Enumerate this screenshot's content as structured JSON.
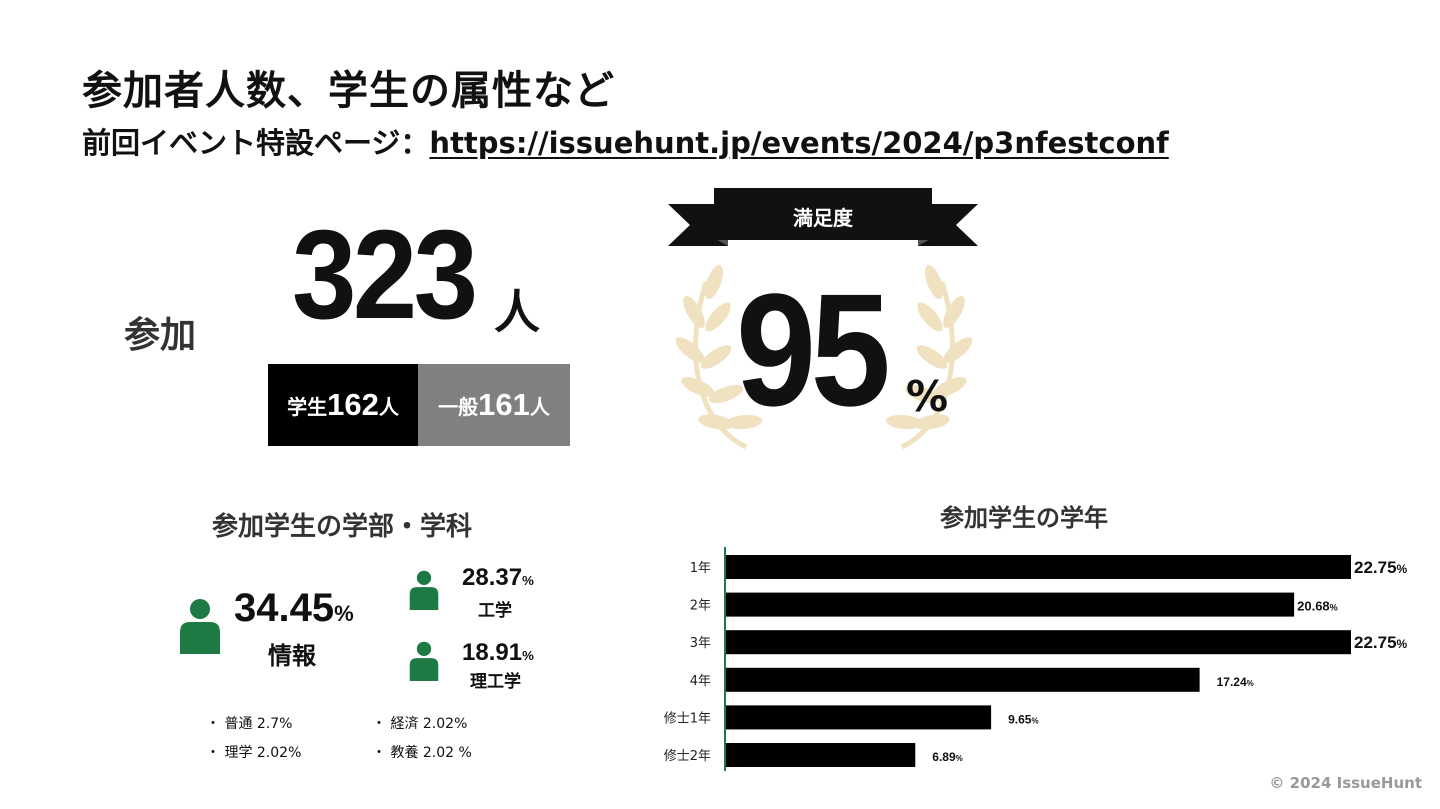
{
  "title": "参加者人数、学生の属性など",
  "subtitle": {
    "prefix": "前回イベント特設ページ：",
    "link": "https://issuehunt.jp/events/2024/p3nfestconf"
  },
  "participants": {
    "label": "参加",
    "total": "323",
    "unit": "人",
    "student": {
      "label": "学生",
      "count": "162",
      "unit": "人"
    },
    "general": {
      "label": "一般",
      "count": "161",
      "unit": "人"
    }
  },
  "satisfaction": {
    "label": "満足度",
    "value": "95",
    "unit": "%",
    "wreath_color": "#f0e2c0",
    "icon": "laurel-wreath-icon"
  },
  "faculty": {
    "title": "参加学生の学部・学科",
    "icon_color": "#1e7a45",
    "icon": "person-icon",
    "main": [
      {
        "value": "34.45",
        "unit": "%",
        "label": "情報"
      },
      {
        "value": "28.37",
        "unit": "%",
        "label": "工学"
      },
      {
        "value": "18.91",
        "unit": "%",
        "label": "理工学"
      }
    ],
    "minor": [
      {
        "text": "・ 普通  2.7%"
      },
      {
        "text": "・ 経済  2.02%"
      },
      {
        "text": "・ 理学  2.02%"
      },
      {
        "text": "・ 教養  2.02 %"
      }
    ]
  },
  "grade_title": "参加学生の学年",
  "chart_data": {
    "type": "bar",
    "orientation": "horizontal",
    "title": "参加学生の学年",
    "categories": [
      "1年",
      "2年",
      "3年",
      "4年",
      "修士1年",
      "修士2年"
    ],
    "values": [
      22.75,
      20.68,
      22.75,
      17.24,
      9.65,
      6.89
    ],
    "value_labels": [
      "22.75",
      "20.68",
      "22.75",
      "17.24",
      "9.65",
      "6.89"
    ],
    "unit": "%",
    "bar_color": "#000000",
    "axis_color": "#1e7a45",
    "xlim": [
      0,
      22.75
    ],
    "grid": false
  },
  "copyright": "© 2024 IssueHunt"
}
